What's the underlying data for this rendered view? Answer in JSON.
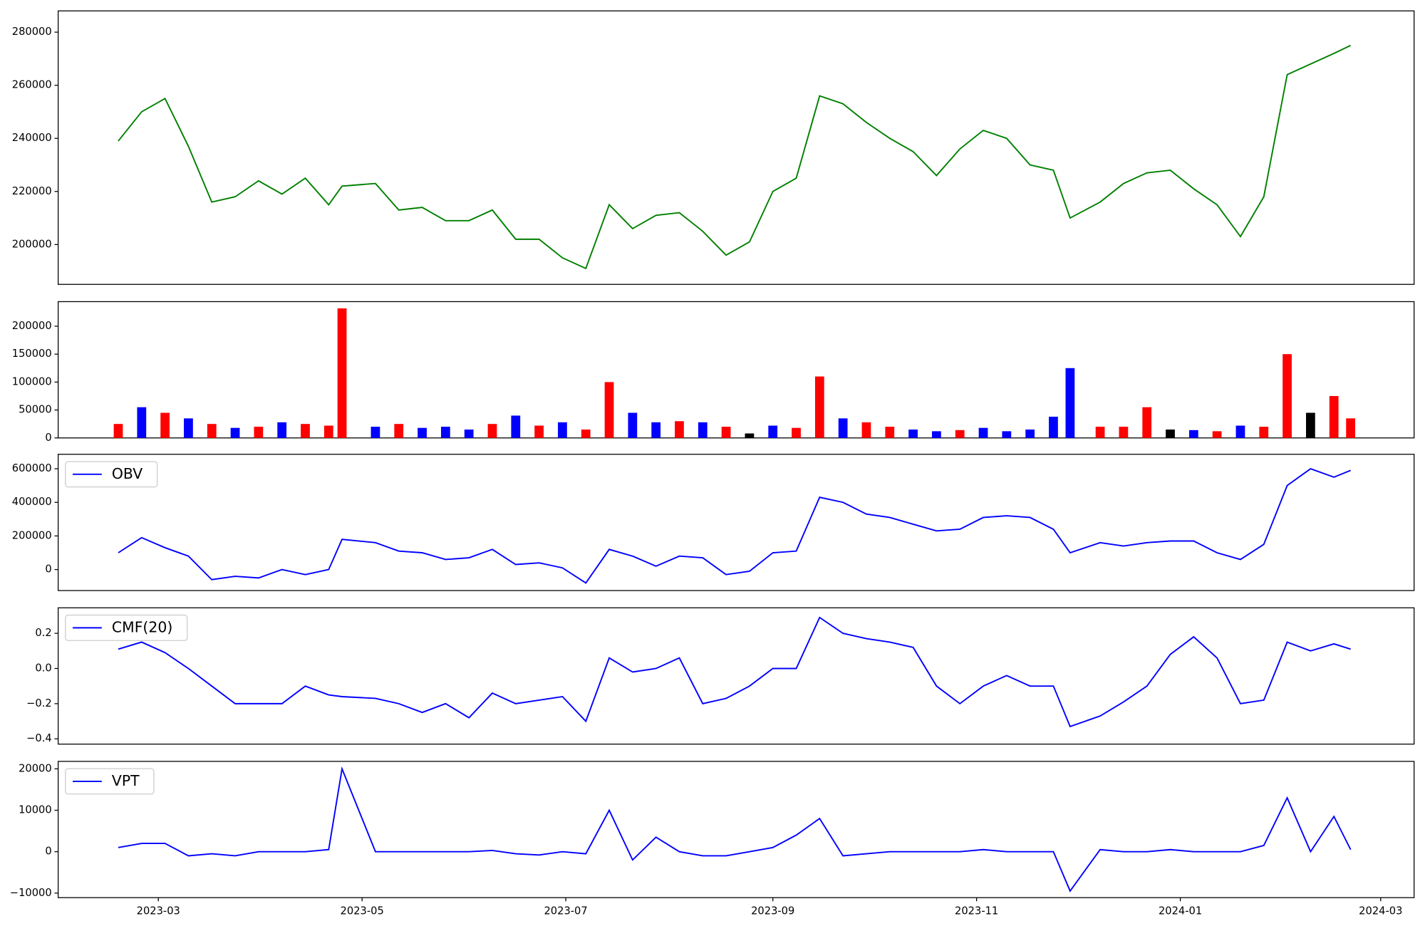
{
  "chart_data": [
    {
      "type": "line",
      "x": [
        -12,
        -5,
        2,
        9,
        16,
        23,
        30,
        37,
        44,
        51,
        55,
        65,
        72,
        79,
        86,
        93,
        100,
        107,
        114,
        121,
        128,
        135,
        142,
        149,
        156,
        163,
        170,
        177,
        184,
        191,
        198,
        205,
        212,
        219,
        226,
        233,
        240,
        247,
        254,
        261,
        268,
        273,
        282,
        289,
        296,
        303,
        310,
        317,
        324,
        331,
        338,
        345,
        352,
        357
      ],
      "series": [
        {
          "color": "green",
          "values": [
            239000,
            250000,
            255000,
            237000,
            216000,
            218000,
            224000,
            219000,
            225000,
            215000,
            222000,
            223000,
            213000,
            214000,
            209000,
            209000,
            213000,
            202000,
            202000,
            195000,
            191000,
            215000,
            206000,
            211000,
            212000,
            205000,
            196000,
            201000,
            220000,
            225000,
            256000,
            253000,
            246000,
            240000,
            235000,
            226000,
            236000,
            243000,
            240000,
            230000,
            228000,
            210000,
            216000,
            223000,
            227000,
            228000,
            221000,
            215000,
            203000,
            218000,
            264000,
            268000,
            272000,
            275000
          ]
        }
      ],
      "xlim": [
        -30,
        376
      ],
      "ylim": [
        185000,
        288000
      ],
      "yticks": [
        200000,
        220000,
        240000,
        260000,
        280000
      ]
    },
    {
      "type": "bar",
      "x": [
        -12,
        -5,
        2,
        9,
        16,
        23,
        30,
        37,
        44,
        51,
        55,
        65,
        72,
        79,
        86,
        93,
        100,
        107,
        114,
        121,
        128,
        135,
        142,
        149,
        156,
        163,
        170,
        177,
        184,
        191,
        198,
        205,
        212,
        219,
        226,
        233,
        240,
        247,
        254,
        261,
        268,
        273,
        282,
        289,
        296,
        303,
        310,
        317,
        324,
        331,
        338,
        345,
        352,
        357
      ],
      "values": [
        25000,
        55000,
        45000,
        35000,
        25000,
        18000,
        20000,
        28000,
        25000,
        22000,
        232000,
        20000,
        25000,
        18000,
        20000,
        15000,
        25000,
        40000,
        22000,
        28000,
        15000,
        100000,
        45000,
        28000,
        30000,
        28000,
        20000,
        8000,
        22000,
        18000,
        110000,
        35000,
        28000,
        20000,
        15000,
        12000,
        14000,
        18000,
        12000,
        15000,
        38000,
        125000,
        20000,
        20000,
        55000,
        15000,
        14000,
        12000,
        22000,
        20000,
        150000,
        45000,
        75000,
        35000
      ],
      "colors": [
        "red",
        "blue",
        "red",
        "blue",
        "red",
        "blue",
        "red",
        "blue",
        "red",
        "red",
        "red",
        "blue",
        "red",
        "blue",
        "blue",
        "blue",
        "red",
        "blue",
        "red",
        "blue",
        "red",
        "red",
        "blue",
        "blue",
        "red",
        "blue",
        "red",
        "black",
        "blue",
        "red",
        "red",
        "blue",
        "red",
        "red",
        "blue",
        "blue",
        "red",
        "blue",
        "blue",
        "blue",
        "blue",
        "blue",
        "red",
        "red",
        "red",
        "black",
        "blue",
        "red",
        "blue",
        "red",
        "red",
        "black",
        "red",
        "red"
      ],
      "xlim": [
        -30,
        376
      ],
      "ylim": [
        0,
        244000
      ],
      "yticks": [
        0,
        50000,
        100000,
        150000,
        200000
      ]
    },
    {
      "type": "line",
      "x": [
        -12,
        -5,
        2,
        9,
        16,
        23,
        30,
        37,
        44,
        51,
        55,
        65,
        72,
        79,
        86,
        93,
        100,
        107,
        114,
        121,
        128,
        135,
        142,
        149,
        156,
        163,
        170,
        177,
        184,
        191,
        198,
        205,
        212,
        219,
        226,
        233,
        240,
        247,
        254,
        261,
        268,
        273,
        282,
        289,
        296,
        303,
        310,
        317,
        324,
        331,
        338,
        345,
        352,
        357
      ],
      "series": [
        {
          "name": "OBV",
          "color": "blue",
          "values": [
            100000,
            190000,
            130000,
            80000,
            -60000,
            -40000,
            -50000,
            0,
            -30000,
            0,
            180000,
            160000,
            110000,
            100000,
            60000,
            70000,
            120000,
            30000,
            40000,
            10000,
            -80000,
            120000,
            80000,
            20000,
            80000,
            70000,
            -30000,
            -10000,
            100000,
            110000,
            430000,
            400000,
            330000,
            310000,
            270000,
            230000,
            240000,
            310000,
            320000,
            310000,
            240000,
            100000,
            160000,
            140000,
            160000,
            170000,
            170000,
            100000,
            60000,
            150000,
            500000,
            600000,
            550000,
            590000
          ]
        }
      ],
      "xlim": [
        -30,
        376
      ],
      "ylim": [
        -125000,
        686000
      ],
      "yticks": [
        0,
        200000,
        400000,
        600000
      ],
      "legend": "upper left"
    },
    {
      "type": "line",
      "x": [
        -12,
        -5,
        2,
        9,
        16,
        23,
        30,
        37,
        44,
        51,
        55,
        65,
        72,
        79,
        86,
        93,
        100,
        107,
        114,
        121,
        128,
        135,
        142,
        149,
        156,
        163,
        170,
        177,
        184,
        191,
        198,
        205,
        212,
        219,
        226,
        233,
        240,
        247,
        254,
        261,
        268,
        273,
        282,
        289,
        296,
        303,
        310,
        317,
        324,
        331,
        338,
        345,
        352,
        357
      ],
      "series": [
        {
          "name": "CMF(20)",
          "color": "blue",
          "values": [
            0.11,
            0.15,
            0.09,
            0.0,
            -0.1,
            -0.2,
            -0.2,
            -0.2,
            -0.1,
            -0.15,
            -0.16,
            -0.17,
            -0.2,
            -0.25,
            -0.2,
            -0.28,
            -0.14,
            -0.2,
            -0.18,
            -0.16,
            -0.3,
            0.06,
            -0.02,
            0.0,
            0.06,
            -0.2,
            -0.17,
            -0.1,
            0.0,
            0.0,
            0.29,
            0.2,
            0.17,
            0.15,
            0.12,
            -0.1,
            -0.2,
            -0.1,
            -0.04,
            -0.1,
            -0.1,
            -0.33,
            -0.27,
            -0.19,
            -0.1,
            0.08,
            0.18,
            0.06,
            -0.2,
            -0.18,
            0.15,
            0.1,
            0.14,
            0.11
          ]
        }
      ],
      "xlim": [
        -30,
        376
      ],
      "ylim": [
        -0.43,
        0.345
      ],
      "yticks": [
        {
          "value": -0.4,
          "label": "−0.4"
        },
        {
          "value": -0.2,
          "label": "−0.2"
        },
        {
          "value": 0,
          "label": "0.0"
        },
        0.2
      ],
      "legend": "upper left"
    },
    {
      "type": "line",
      "x": [
        -12,
        -5,
        2,
        9,
        16,
        23,
        30,
        37,
        44,
        51,
        55,
        65,
        72,
        79,
        86,
        93,
        100,
        107,
        114,
        121,
        128,
        135,
        142,
        149,
        156,
        163,
        170,
        177,
        184,
        191,
        198,
        205,
        212,
        219,
        226,
        233,
        240,
        247,
        254,
        261,
        268,
        273,
        282,
        289,
        296,
        303,
        310,
        317,
        324,
        331,
        338,
        345,
        352,
        357
      ],
      "series": [
        {
          "name": "VPT",
          "color": "blue",
          "values": [
            1000,
            2000,
            2000,
            -1000,
            -500,
            -1000,
            0,
            0,
            0,
            500,
            20000,
            0,
            0,
            0,
            0,
            0,
            300,
            -500,
            -800,
            0,
            -500,
            10000,
            -2000,
            3500,
            0,
            -1000,
            -1000,
            0,
            1000,
            4000,
            8000,
            -1000,
            -500,
            0,
            0,
            0,
            0,
            500,
            0,
            0,
            0,
            -9500,
            500,
            0,
            0,
            500,
            0,
            0,
            0,
            1500,
            13000,
            0,
            8500,
            500
          ]
        }
      ],
      "xlim": [
        -30,
        376
      ],
      "ylim": [
        -11100,
        21800
      ],
      "yticks": [
        {
          "value": -10000,
          "label": "−10000"
        },
        0,
        10000,
        20000
      ],
      "xticks": [
        {
          "value": 0,
          "label": "2023-03"
        },
        {
          "value": 61,
          "label": "2023-05"
        },
        {
          "value": 122,
          "label": "2023-07"
        },
        {
          "value": 184,
          "label": "2023-09"
        },
        {
          "value": 245,
          "label": "2023-11"
        },
        {
          "value": 306,
          "label": "2024-01"
        },
        {
          "value": 366,
          "label": "2024-03"
        }
      ],
      "legend": "upper left"
    }
  ]
}
